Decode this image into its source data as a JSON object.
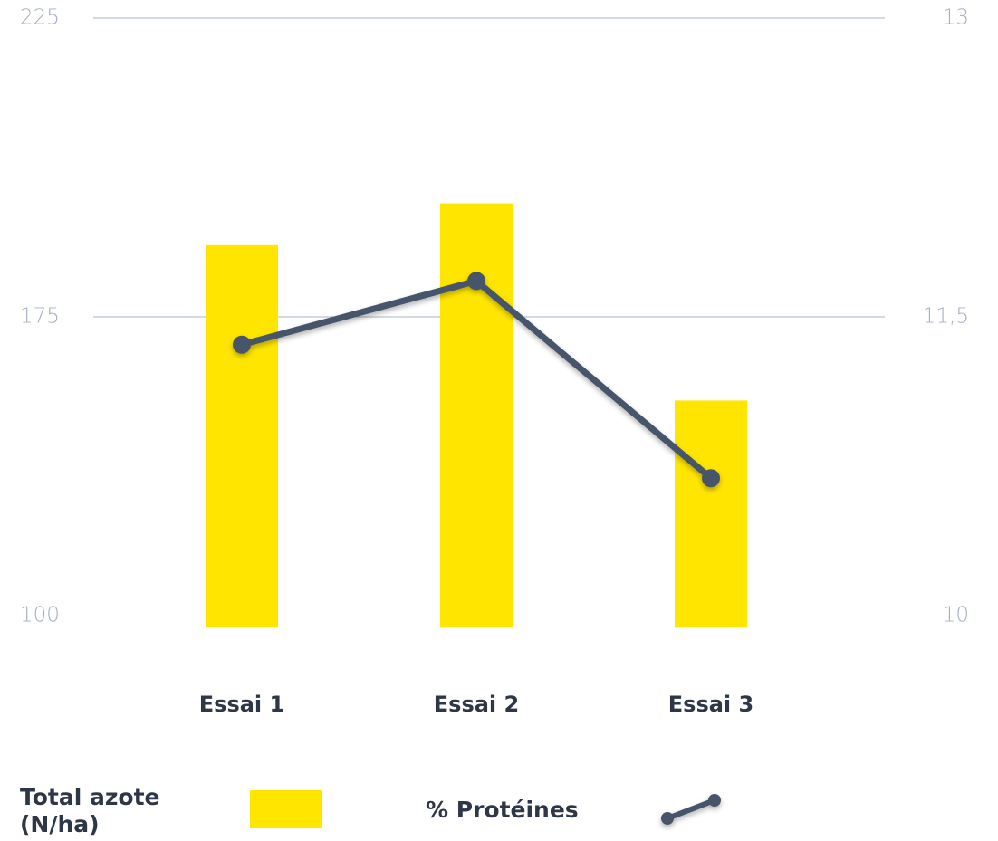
{
  "chart_data": {
    "type": "bar_line",
    "categories": [
      "Essai 1",
      "Essai 2",
      "Essai 3"
    ],
    "series": [
      {
        "name": "Total azote (N/ha)",
        "type": "bar",
        "color": "#ffe500",
        "values": [
          187,
          194,
          154
        ]
      },
      {
        "name": "% Protéines",
        "type": "line",
        "axis": "y2",
        "color": "#46546a",
        "values": [
          11.36,
          11.68,
          10.69
        ]
      }
    ],
    "ylim": [
      97,
      225
    ],
    "yticks": [
      100,
      175,
      225
    ],
    "y2lim": [
      9.95,
      13
    ],
    "y2ticks": [
      10,
      {
        "value": 11.5,
        "label": "11,5"
      },
      13
    ],
    "grid": true
  }
}
